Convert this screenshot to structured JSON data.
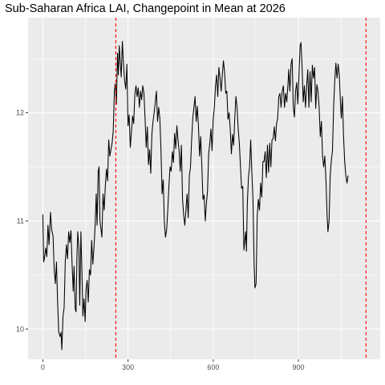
{
  "chart_data": {
    "type": "line",
    "title": "Sub-Saharan Africa LAI, Changepoint in Mean at 2026",
    "xlabel": "",
    "ylabel": "",
    "xlim": [
      -52,
      1188
    ],
    "ylim": [
      9.72,
      12.88
    ],
    "x_ticks": [
      0,
      300,
      600,
      900
    ],
    "y_ticks": [
      10,
      11,
      12
    ],
    "grid": true,
    "legend": "none",
    "colors": {
      "line": "#000000",
      "changepoint": "#ff0000",
      "panel": "#ebebeb",
      "grid": "#ffffff"
    },
    "changepoints_x": [
      257,
      1138
    ],
    "series": [
      {
        "values": [
          [
            0,
            11.06
          ],
          [
            3,
            10.62
          ],
          [
            6,
            10.66
          ],
          [
            10,
            10.75
          ],
          [
            14,
            10.67
          ],
          [
            18,
            10.96
          ],
          [
            22,
            10.78
          ],
          [
            27,
            11.08
          ],
          [
            31,
            10.92
          ],
          [
            36,
            10.86
          ],
          [
            40,
            10.55
          ],
          [
            44,
            10.42
          ],
          [
            48,
            10.62
          ],
          [
            52,
            10.25
          ],
          [
            56,
            9.97
          ],
          [
            61,
            9.93
          ],
          [
            64,
            9.97
          ],
          [
            67,
            9.81
          ],
          [
            71,
            10.12
          ],
          [
            75,
            10.2
          ],
          [
            79,
            10.62
          ],
          [
            83,
            10.78
          ],
          [
            87,
            10.65
          ],
          [
            91,
            10.9
          ],
          [
            95,
            10.8
          ],
          [
            99,
            10.91
          ],
          [
            103,
            10.6
          ],
          [
            107,
            10.35
          ],
          [
            110,
            10.58
          ],
          [
            114,
            10.19
          ],
          [
            117,
            10.16
          ],
          [
            120,
            10.65
          ],
          [
            123,
            10.9
          ],
          [
            127,
            10.75
          ],
          [
            130,
            10.22
          ],
          [
            134,
            10.9
          ],
          [
            138,
            10.5
          ],
          [
            141,
            10.12
          ],
          [
            145,
            10.28
          ],
          [
            149,
            10.07
          ],
          [
            152,
            10.36
          ],
          [
            156,
            10.45
          ],
          [
            160,
            10.25
          ],
          [
            164,
            10.55
          ],
          [
            168,
            10.5
          ],
          [
            172,
            10.82
          ],
          [
            176,
            10.6
          ],
          [
            180,
            10.75
          ],
          [
            184,
            10.95
          ],
          [
            188,
            11.25
          ],
          [
            191,
            10.96
          ],
          [
            195,
            11.46
          ],
          [
            198,
            11.5
          ],
          [
            201,
            11.0
          ],
          [
            205,
            10.92
          ],
          [
            208,
            10.85
          ],
          [
            212,
            11.25
          ],
          [
            216,
            11.1
          ],
          [
            220,
            11.32
          ],
          [
            224,
            11.48
          ],
          [
            228,
            11.37
          ],
          [
            232,
            11.75
          ],
          [
            236,
            11.6
          ],
          [
            240,
            11.66
          ],
          [
            244,
            11.72
          ],
          [
            248,
            11.84
          ],
          [
            252,
            12.2
          ],
          [
            255,
            12.27
          ],
          [
            259,
            12.08
          ],
          [
            263,
            12.55
          ],
          [
            266,
            12.35
          ],
          [
            269,
            12.62
          ],
          [
            272,
            12.49
          ],
          [
            276,
            12.33
          ],
          [
            280,
            12.66
          ],
          [
            284,
            12.45
          ],
          [
            288,
            12.3
          ],
          [
            292,
            12.22
          ],
          [
            296,
            12.45
          ],
          [
            300,
            11.88
          ],
          [
            304,
            11.98
          ],
          [
            308,
            11.68
          ],
          [
            312,
            11.82
          ],
          [
            316,
            11.97
          ],
          [
            320,
            11.9
          ],
          [
            324,
            12.17
          ],
          [
            328,
            12.25
          ],
          [
            332,
            12.15
          ],
          [
            336,
            12.23
          ],
          [
            340,
            12.05
          ],
          [
            344,
            12.2
          ],
          [
            348,
            12.12
          ],
          [
            352,
            12.25
          ],
          [
            356,
            12.18
          ],
          [
            360,
            11.95
          ],
          [
            364,
            11.68
          ],
          [
            368,
            11.87
          ],
          [
            372,
            11.52
          ],
          [
            376,
            11.66
          ],
          [
            380,
            11.44
          ],
          [
            384,
            11.8
          ],
          [
            388,
            11.92
          ],
          [
            392,
            12.0
          ],
          [
            396,
            12.1
          ],
          [
            400,
            12.2
          ],
          [
            404,
            11.92
          ],
          [
            408,
            12.05
          ],
          [
            412,
            11.95
          ],
          [
            416,
            11.66
          ],
          [
            420,
            11.25
          ],
          [
            424,
            11.38
          ],
          [
            428,
            10.98
          ],
          [
            432,
            10.85
          ],
          [
            436,
            10.92
          ],
          [
            440,
            11.1
          ],
          [
            444,
            11.32
          ],
          [
            448,
            11.5
          ],
          [
            452,
            11.46
          ],
          [
            456,
            11.64
          ],
          [
            460,
            11.54
          ],
          [
            464,
            11.81
          ],
          [
            468,
            11.67
          ],
          [
            472,
            11.88
          ],
          [
            476,
            11.75
          ],
          [
            480,
            11.64
          ],
          [
            484,
            11.46
          ],
          [
            488,
            11.7
          ],
          [
            492,
            11.2
          ],
          [
            496,
            11.05
          ],
          [
            500,
            10.96
          ],
          [
            504,
            11.1
          ],
          [
            508,
            11.25
          ],
          [
            512,
            11.03
          ],
          [
            516,
            11.42
          ],
          [
            520,
            11.5
          ],
          [
            524,
            11.75
          ],
          [
            528,
            11.95
          ],
          [
            532,
            12.05
          ],
          [
            536,
            12.15
          ],
          [
            540,
            11.92
          ],
          [
            544,
            12.06
          ],
          [
            548,
            11.88
          ],
          [
            552,
            11.6
          ],
          [
            556,
            11.78
          ],
          [
            560,
            11.5
          ],
          [
            564,
            11.2
          ],
          [
            568,
            11.24
          ],
          [
            572,
            11.0
          ],
          [
            576,
            11.16
          ],
          [
            580,
            11.28
          ],
          [
            584,
            11.62
          ],
          [
            588,
            11.72
          ],
          [
            592,
            11.85
          ],
          [
            596,
            11.65
          ],
          [
            600,
            11.94
          ],
          [
            604,
            12.05
          ],
          [
            608,
            12.25
          ],
          [
            612,
            12.35
          ],
          [
            616,
            12.15
          ],
          [
            620,
            12.42
          ],
          [
            624,
            12.32
          ],
          [
            628,
            12.2
          ],
          [
            632,
            12.35
          ],
          [
            636,
            12.48
          ],
          [
            640,
            12.38
          ],
          [
            644,
            12.18
          ],
          [
            648,
            12.2
          ],
          [
            652,
            11.94
          ],
          [
            656,
            12.0
          ],
          [
            660,
            11.85
          ],
          [
            664,
            11.62
          ],
          [
            668,
            11.8
          ],
          [
            672,
            11.7
          ],
          [
            676,
            11.96
          ],
          [
            680,
            12.15
          ],
          [
            684,
            12.05
          ],
          [
            688,
            11.85
          ],
          [
            692,
            11.72
          ],
          [
            696,
            11.5
          ],
          [
            700,
            11.3
          ],
          [
            704,
            11.32
          ],
          [
            708,
            10.73
          ],
          [
            711,
            10.82
          ],
          [
            714,
            10.9
          ],
          [
            717,
            10.72
          ],
          [
            720,
            11.15
          ],
          [
            724,
            11.4
          ],
          [
            728,
            11.5
          ],
          [
            732,
            11.75
          ],
          [
            736,
            11.45
          ],
          [
            740,
            11.2
          ],
          [
            744,
            10.6
          ],
          [
            747,
            10.38
          ],
          [
            751,
            10.42
          ],
          [
            755,
            11.05
          ],
          [
            759,
            11.2
          ],
          [
            763,
            11.1
          ],
          [
            767,
            11.35
          ],
          [
            771,
            11.22
          ],
          [
            775,
            11.55
          ],
          [
            779,
            11.55
          ],
          [
            783,
            11.64
          ],
          [
            787,
            11.4
          ],
          [
            791,
            11.7
          ],
          [
            795,
            11.45
          ],
          [
            799,
            11.72
          ],
          [
            803,
            11.5
          ],
          [
            807,
            11.75
          ],
          [
            811,
            11.76
          ],
          [
            815,
            11.87
          ],
          [
            819,
            11.74
          ],
          [
            823,
            11.9
          ],
          [
            827,
            11.95
          ],
          [
            831,
            12.15
          ],
          [
            835,
            12.18
          ],
          [
            839,
            12.05
          ],
          [
            843,
            12.2
          ],
          [
            847,
            12.25
          ],
          [
            851,
            12.05
          ],
          [
            855,
            12.18
          ],
          [
            859,
            12.1
          ],
          [
            863,
            12.25
          ],
          [
            866,
            12.4
          ],
          [
            870,
            12.2
          ],
          [
            874,
            12.45
          ],
          [
            878,
            12.5
          ],
          [
            882,
            12.05
          ],
          [
            886,
            11.96
          ],
          [
            890,
            12.2
          ],
          [
            894,
            12.28
          ],
          [
            898,
            12.08
          ],
          [
            902,
            12.35
          ],
          [
            906,
            12.62
          ],
          [
            909,
            12.65
          ],
          [
            913,
            12.42
          ],
          [
            917,
            12.1
          ],
          [
            921,
            12.25
          ],
          [
            925,
            12.05
          ],
          [
            929,
            12.25
          ],
          [
            933,
            12.4
          ],
          [
            937,
            12.05
          ],
          [
            941,
            12.38
          ],
          [
            945,
            12.1
          ],
          [
            949,
            12.44
          ],
          [
            953,
            12.32
          ],
          [
            957,
            12.42
          ],
          [
            961,
            12.04
          ],
          [
            965,
            12.26
          ],
          [
            969,
            12.2
          ],
          [
            973,
            12.05
          ],
          [
            977,
            11.78
          ],
          [
            981,
            11.92
          ],
          [
            985,
            11.6
          ],
          [
            989,
            11.5
          ],
          [
            993,
            11.6
          ],
          [
            997,
            11.38
          ],
          [
            1001,
            11.05
          ],
          [
            1004,
            10.9
          ],
          [
            1008,
            11.0
          ],
          [
            1012,
            11.42
          ],
          [
            1016,
            11.56
          ],
          [
            1020,
            11.65
          ],
          [
            1024,
            12.05
          ],
          [
            1028,
            12.3
          ],
          [
            1032,
            12.46
          ],
          [
            1036,
            12.32
          ],
          [
            1040,
            12.45
          ],
          [
            1044,
            12.35
          ],
          [
            1048,
            12.1
          ],
          [
            1051,
            11.95
          ],
          [
            1055,
            12.15
          ],
          [
            1059,
            11.78
          ],
          [
            1063,
            11.55
          ],
          [
            1067,
            11.42
          ],
          [
            1071,
            11.35
          ],
          [
            1075,
            11.42
          ]
        ]
      }
    ]
  }
}
